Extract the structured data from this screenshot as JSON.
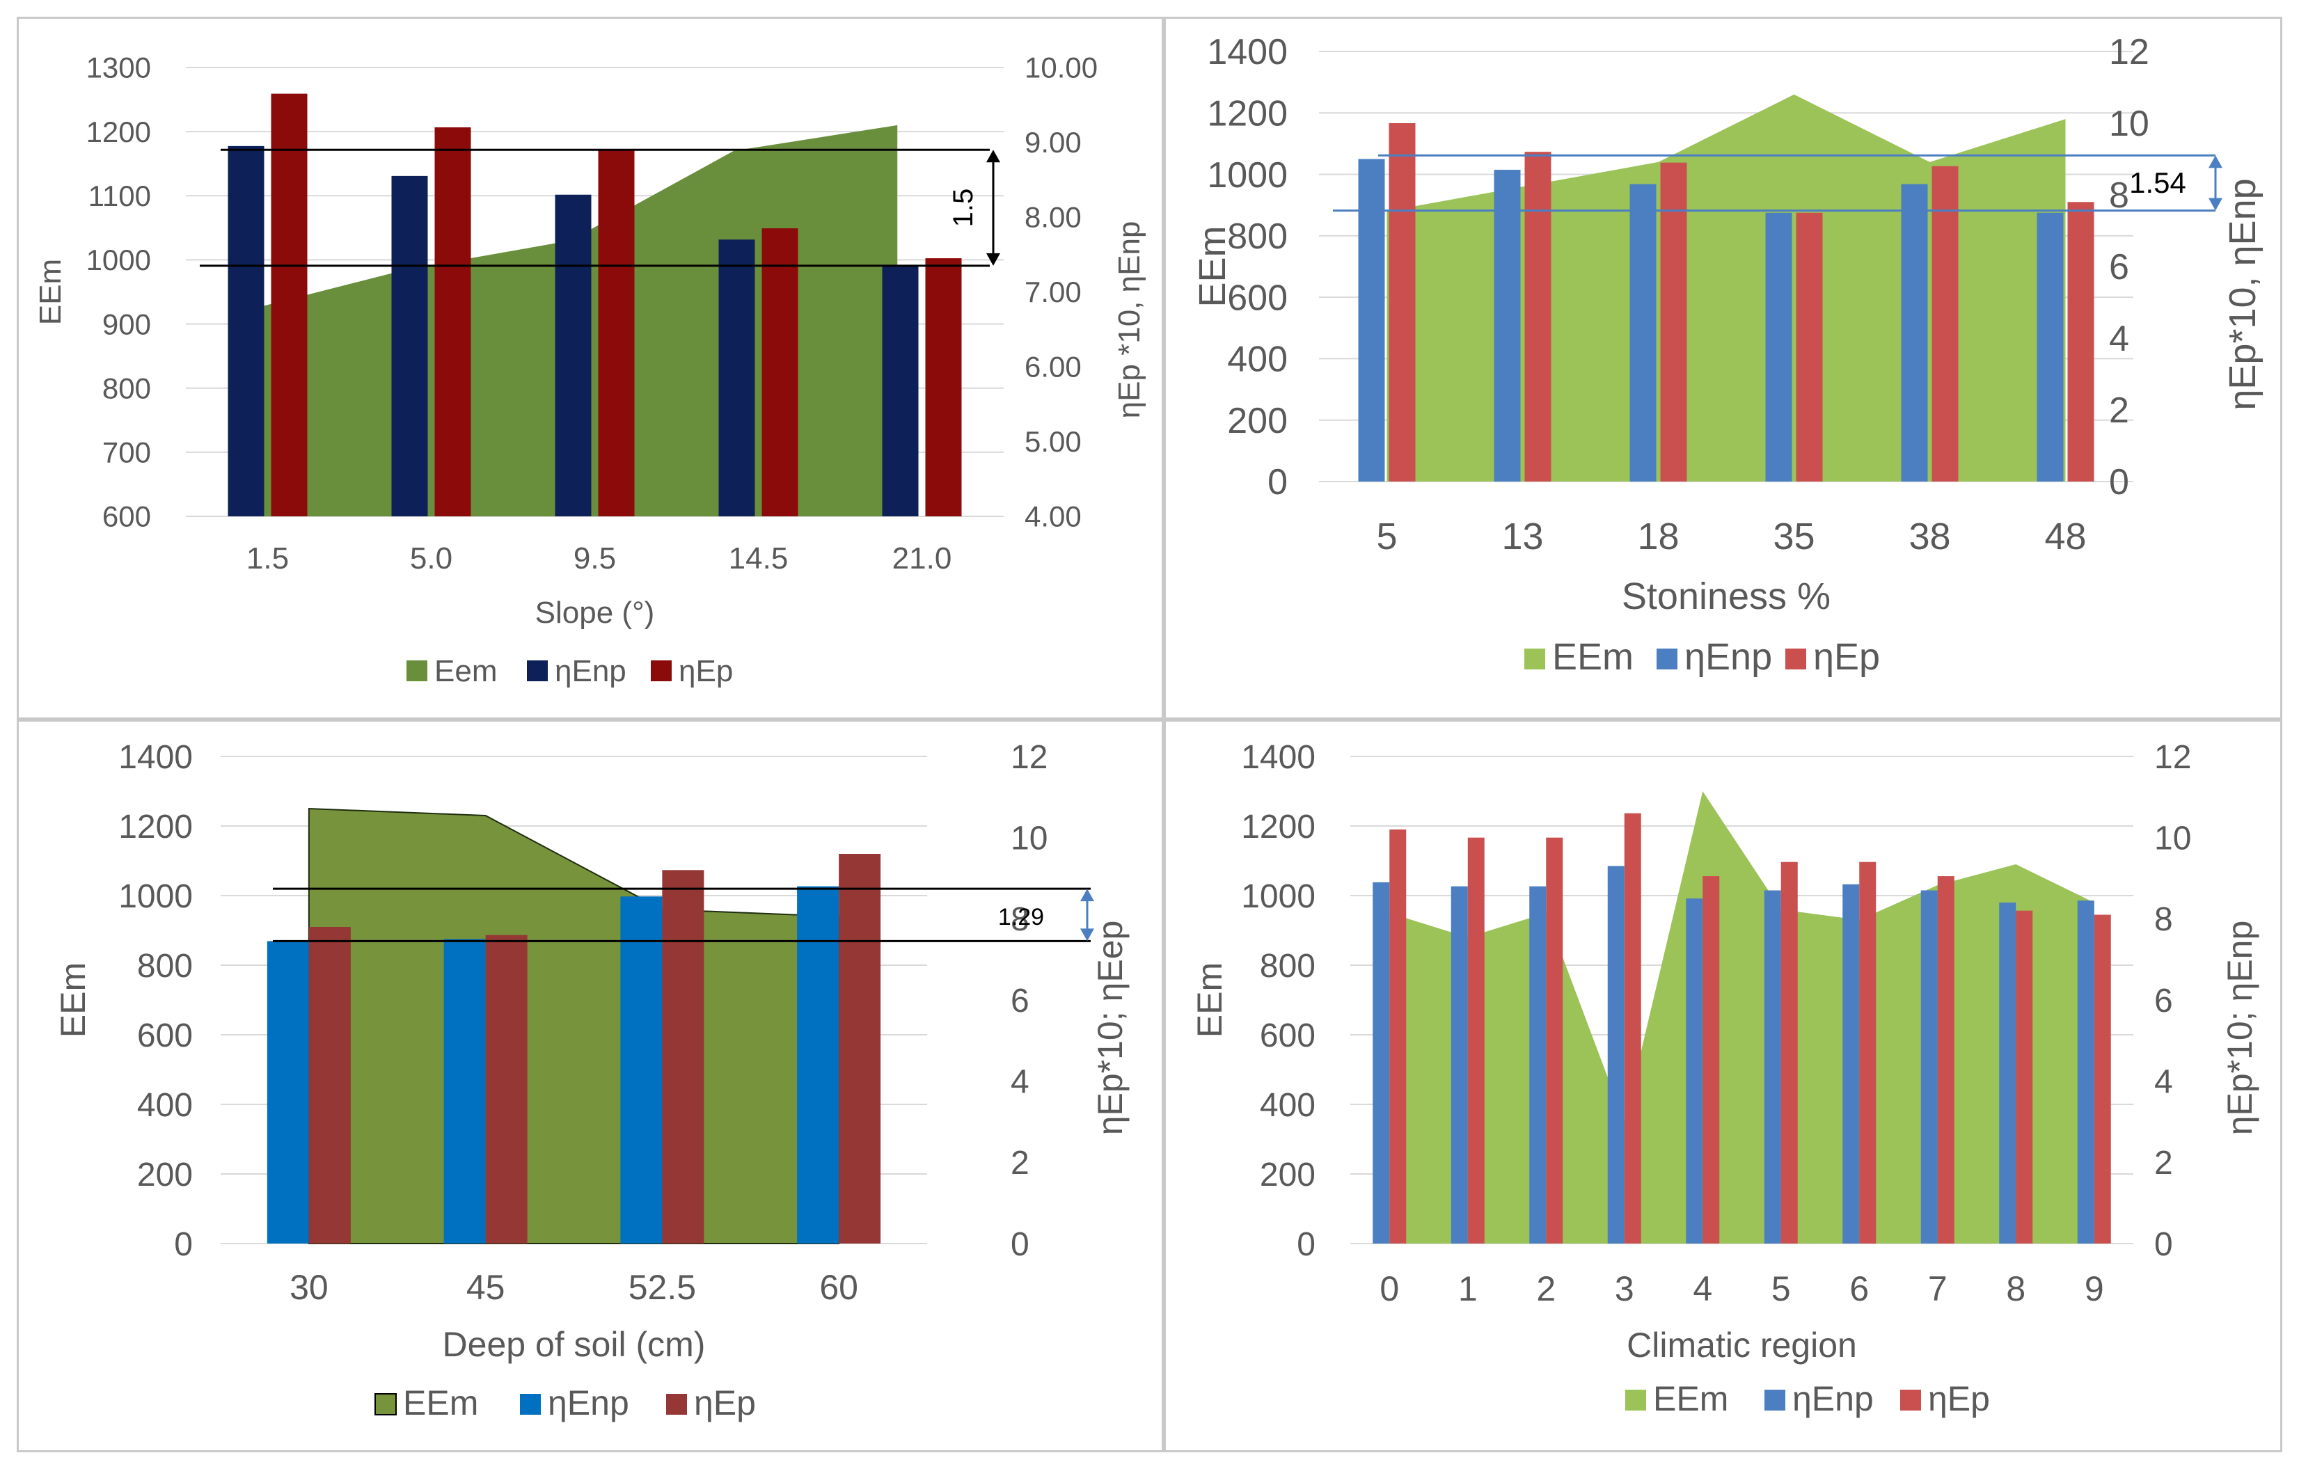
{
  "chart_data": [
    {
      "type": "bar",
      "xlabel": "Slope (°)",
      "ylabel": "EEm",
      "y2label": "ηEp *10, ηEnp",
      "categories": [
        "1.5",
        "5.0",
        "9.5",
        "14.5",
        "21.0"
      ],
      "ylim": [
        600,
        1300
      ],
      "yticks": [
        "600",
        "700",
        "800",
        "900",
        "1000",
        "1100",
        "1200",
        "1300"
      ],
      "y2lim": [
        4,
        10
      ],
      "y2ticks": [
        "4.00",
        "5.00",
        "6.00",
        "7.00",
        "8.00",
        "9.00",
        "10.00"
      ],
      "series": [
        {
          "name": "Eem",
          "kind": "area",
          "axis": "left",
          "values": [
            920,
            985,
            1030,
            1170,
            1210
          ]
        },
        {
          "name": "ηEnp",
          "kind": "bar",
          "axis": "right",
          "values": [
            8.95,
            8.55,
            8.3,
            7.7,
            7.35
          ]
        },
        {
          "name": "ηEp",
          "kind": "bar",
          "axis": "right",
          "values": [
            9.65,
            9.2,
            8.9,
            7.85,
            7.45
          ]
        }
      ],
      "annotation": {
        "label": "1.5",
        "y2_high": 8.9,
        "y2_low": 7.35
      },
      "legend": [
        "Eem",
        "ηEnp",
        "ηEp"
      ],
      "colors": {
        "area": "#6a8f3c",
        "bar1": "#0d2158",
        "bar2": "#8b0a0a"
      }
    },
    {
      "type": "bar",
      "xlabel": "Stoniness %",
      "ylabel": "EEm",
      "y2label": "ηEp*10, ηEnp",
      "categories": [
        "5",
        "13",
        "18",
        "35",
        "38",
        "48"
      ],
      "ylim": [
        0,
        1400
      ],
      "yticks": [
        "0",
        "200",
        "400",
        "600",
        "800",
        "1000",
        "1200",
        "1400"
      ],
      "y2lim": [
        0,
        12
      ],
      "y2ticks": [
        "0",
        "2",
        "4",
        "6",
        "8",
        "10",
        "12"
      ],
      "series": [
        {
          "name": "EEm",
          "kind": "area",
          "axis": "left",
          "values": [
            880,
            960,
            1040,
            1260,
            1040,
            1180
          ]
        },
        {
          "name": "ηEnp",
          "kind": "bar",
          "axis": "right",
          "values": [
            9.0,
            8.7,
            8.3,
            7.5,
            8.3,
            7.5
          ]
        },
        {
          "name": "ηEp",
          "kind": "bar",
          "axis": "right",
          "values": [
            10.0,
            9.2,
            8.9,
            7.5,
            8.8,
            7.8
          ]
        }
      ],
      "annotation": {
        "label": "1.54",
        "y2_high": 9.1,
        "y2_low": 7.56
      },
      "legend": [
        "EEm",
        "ηEnp",
        "ηEp"
      ],
      "colors": {
        "area": "#9bc358",
        "bar1": "#4b7fc1",
        "bar2": "#c9504f"
      }
    },
    {
      "type": "bar",
      "xlabel": "Deep of soil (cm)",
      "ylabel": "EEm",
      "y2label": "ηEp*10; ηEep",
      "categories": [
        "30",
        "45",
        "52.5",
        "60"
      ],
      "ylim": [
        0,
        1400
      ],
      "yticks": [
        "0",
        "200",
        "400",
        "600",
        "800",
        "1000",
        "1200",
        "1400"
      ],
      "y2lim": [
        0,
        12
      ],
      "y2ticks": [
        "0",
        "2",
        "4",
        "6",
        "8",
        "10",
        "12"
      ],
      "series": [
        {
          "name": "EEm",
          "kind": "area",
          "axis": "left",
          "values": [
            1250,
            1230,
            960,
            940
          ]
        },
        {
          "name": "ηEnp",
          "kind": "bar",
          "axis": "right",
          "values": [
            7.45,
            7.5,
            8.55,
            8.8
          ]
        },
        {
          "name": "ηEp",
          "kind": "bar",
          "axis": "right",
          "values": [
            7.8,
            7.6,
            9.2,
            9.6
          ]
        }
      ],
      "annotation": {
        "label": "1.29",
        "y2_high": 8.74,
        "y2_low": 7.45
      },
      "legend": [
        "EEm",
        "ηEnp",
        "ηEp"
      ],
      "colors": {
        "area": "#77933c",
        "bar1": "#0070c0",
        "bar2": "#953735"
      }
    },
    {
      "type": "bar",
      "xlabel": "Climatic region",
      "ylabel": "EEm",
      "y2label": "ηEp*10; ηEnp",
      "categories": [
        "0",
        "1",
        "2",
        "3",
        "4",
        "5",
        "6",
        "7",
        "8",
        "9"
      ],
      "ylim": [
        0,
        1400
      ],
      "yticks": [
        "0",
        "200",
        "400",
        "600",
        "800",
        "1000",
        "1200",
        "1400"
      ],
      "y2lim": [
        0,
        12
      ],
      "y2ticks": [
        "0",
        "2",
        "4",
        "6",
        "8",
        "10",
        "12"
      ],
      "series": [
        {
          "name": "EEm",
          "kind": "area",
          "axis": "left",
          "values": [
            950,
            880,
            950,
            350,
            1300,
            960,
            930,
            1030,
            1090,
            980
          ]
        },
        {
          "name": "ηEnp",
          "kind": "bar",
          "axis": "right",
          "values": [
            8.9,
            8.8,
            8.8,
            9.3,
            8.5,
            8.7,
            8.85,
            8.7,
            8.4,
            8.45
          ]
        },
        {
          "name": "ηEp",
          "kind": "bar",
          "axis": "right",
          "values": [
            10.2,
            10.0,
            10.0,
            10.6,
            9.05,
            9.4,
            9.4,
            9.05,
            8.2,
            8.1
          ]
        }
      ],
      "legend": [
        "EEm",
        "ηEnp",
        "ηEp"
      ],
      "colors": {
        "area": "#9bc358",
        "bar1": "#4b7fc1",
        "bar2": "#c9504f"
      }
    }
  ]
}
